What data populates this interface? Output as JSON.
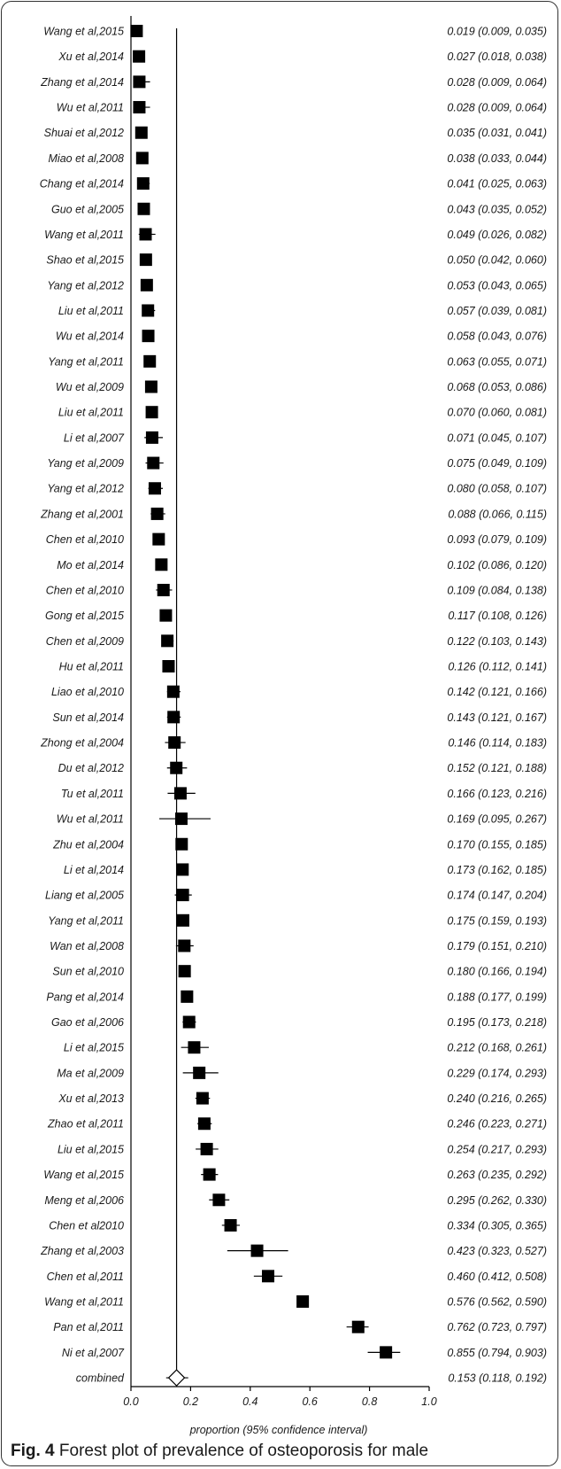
{
  "caption": {
    "label": "Fig. 4",
    "text": "Forest plot of prevalence of osteoporosis for male"
  },
  "colors": {
    "marker": "#000000",
    "line": "#000000",
    "frame": "#333333"
  },
  "chart_data": {
    "type": "forest",
    "xlabel": "proportion (95% confidence interval)",
    "xlim": [
      0.0,
      1.0
    ],
    "xticks": [
      "0.0",
      "0.2",
      "0.4",
      "0.6",
      "0.8",
      "1.0"
    ],
    "reference_line": 0.153,
    "studies": [
      {
        "name": "Wang et al,2015",
        "est": 0.019,
        "lo": 0.009,
        "hi": 0.035,
        "ci_text": "0.019 (0.009, 0.035)"
      },
      {
        "name": "Xu et al,2014",
        "est": 0.027,
        "lo": 0.018,
        "hi": 0.038,
        "ci_text": "0.027 (0.018, 0.038)"
      },
      {
        "name": "Zhang et al,2014",
        "est": 0.028,
        "lo": 0.009,
        "hi": 0.064,
        "ci_text": "0.028 (0.009, 0.064)"
      },
      {
        "name": "Wu et al,2011",
        "est": 0.028,
        "lo": 0.009,
        "hi": 0.064,
        "ci_text": "0.028 (0.009, 0.064)"
      },
      {
        "name": "Shuai et al,2012",
        "est": 0.035,
        "lo": 0.031,
        "hi": 0.041,
        "ci_text": "0.035 (0.031, 0.041)"
      },
      {
        "name": "Miao et al,2008",
        "est": 0.038,
        "lo": 0.033,
        "hi": 0.044,
        "ci_text": "0.038 (0.033, 0.044)"
      },
      {
        "name": "Chang et al,2014",
        "est": 0.041,
        "lo": 0.025,
        "hi": 0.063,
        "ci_text": "0.041 (0.025, 0.063)"
      },
      {
        "name": "Guo et al,2005",
        "est": 0.043,
        "lo": 0.035,
        "hi": 0.052,
        "ci_text": "0.043 (0.035, 0.052)"
      },
      {
        "name": "Wang et al,2011",
        "est": 0.049,
        "lo": 0.026,
        "hi": 0.082,
        "ci_text": "0.049 (0.026, 0.082)"
      },
      {
        "name": "Shao et al,2015",
        "est": 0.05,
        "lo": 0.042,
        "hi": 0.06,
        "ci_text": "0.050 (0.042, 0.060)"
      },
      {
        "name": "Yang et al,2012",
        "est": 0.053,
        "lo": 0.043,
        "hi": 0.065,
        "ci_text": "0.053 (0.043, 0.065)"
      },
      {
        "name": "Liu et al,2011",
        "est": 0.057,
        "lo": 0.039,
        "hi": 0.081,
        "ci_text": "0.057 (0.039, 0.081)"
      },
      {
        "name": "Wu et al,2014",
        "est": 0.058,
        "lo": 0.043,
        "hi": 0.076,
        "ci_text": "0.058 (0.043, 0.076)"
      },
      {
        "name": "Yang et al,2011",
        "est": 0.063,
        "lo": 0.055,
        "hi": 0.071,
        "ci_text": "0.063 (0.055, 0.071)"
      },
      {
        "name": "Wu et al,2009",
        "est": 0.068,
        "lo": 0.053,
        "hi": 0.086,
        "ci_text": "0.068 (0.053, 0.086)"
      },
      {
        "name": "Liu et al,2011",
        "est": 0.07,
        "lo": 0.06,
        "hi": 0.081,
        "ci_text": "0.070 (0.060, 0.081)"
      },
      {
        "name": "Li et al,2007",
        "est": 0.071,
        "lo": 0.045,
        "hi": 0.107,
        "ci_text": "0.071 (0.045, 0.107)"
      },
      {
        "name": "Yang et al,2009",
        "est": 0.075,
        "lo": 0.049,
        "hi": 0.109,
        "ci_text": "0.075 (0.049, 0.109)"
      },
      {
        "name": "Yang et al,2012",
        "est": 0.08,
        "lo": 0.058,
        "hi": 0.107,
        "ci_text": "0.080 (0.058, 0.107)"
      },
      {
        "name": "Zhang et al,2001",
        "est": 0.088,
        "lo": 0.066,
        "hi": 0.115,
        "ci_text": "0.088 (0.066, 0.115)"
      },
      {
        "name": "Chen et al,2010",
        "est": 0.093,
        "lo": 0.079,
        "hi": 0.109,
        "ci_text": "0.093 (0.079, 0.109)"
      },
      {
        "name": "Mo et al,2014",
        "est": 0.102,
        "lo": 0.086,
        "hi": 0.12,
        "ci_text": "0.102 (0.086, 0.120)"
      },
      {
        "name": "Chen et al,2010",
        "est": 0.109,
        "lo": 0.084,
        "hi": 0.138,
        "ci_text": "0.109 (0.084, 0.138)"
      },
      {
        "name": "Gong et al,2015",
        "est": 0.117,
        "lo": 0.108,
        "hi": 0.126,
        "ci_text": "0.117 (0.108, 0.126)"
      },
      {
        "name": "Chen et al,2009",
        "est": 0.122,
        "lo": 0.103,
        "hi": 0.143,
        "ci_text": "0.122 (0.103, 0.143)"
      },
      {
        "name": "Hu et al,2011",
        "est": 0.126,
        "lo": 0.112,
        "hi": 0.141,
        "ci_text": "0.126 (0.112, 0.141)"
      },
      {
        "name": "Liao et al,2010",
        "est": 0.142,
        "lo": 0.121,
        "hi": 0.166,
        "ci_text": "0.142 (0.121, 0.166)"
      },
      {
        "name": "Sun et al,2014",
        "est": 0.143,
        "lo": 0.121,
        "hi": 0.167,
        "ci_text": "0.143 (0.121, 0.167)"
      },
      {
        "name": "Zhong et al,2004",
        "est": 0.146,
        "lo": 0.114,
        "hi": 0.183,
        "ci_text": "0.146 (0.114, 0.183)"
      },
      {
        "name": "Du et al,2012",
        "est": 0.152,
        "lo": 0.121,
        "hi": 0.188,
        "ci_text": "0.152 (0.121, 0.188)"
      },
      {
        "name": "Tu et al,2011",
        "est": 0.166,
        "lo": 0.123,
        "hi": 0.216,
        "ci_text": "0.166 (0.123, 0.216)"
      },
      {
        "name": "Wu et al,2011",
        "est": 0.169,
        "lo": 0.095,
        "hi": 0.267,
        "ci_text": "0.169 (0.095, 0.267)"
      },
      {
        "name": "Zhu et al,2004",
        "est": 0.17,
        "lo": 0.155,
        "hi": 0.185,
        "ci_text": "0.170 (0.155, 0.185)"
      },
      {
        "name": "Li et al,2014",
        "est": 0.173,
        "lo": 0.162,
        "hi": 0.185,
        "ci_text": "0.173 (0.162, 0.185)"
      },
      {
        "name": "Liang et al,2005",
        "est": 0.174,
        "lo": 0.147,
        "hi": 0.204,
        "ci_text": "0.174 (0.147, 0.204)"
      },
      {
        "name": "Yang et al,2011",
        "est": 0.175,
        "lo": 0.159,
        "hi": 0.193,
        "ci_text": "0.175 (0.159, 0.193)"
      },
      {
        "name": "Wan et al,2008",
        "est": 0.179,
        "lo": 0.151,
        "hi": 0.21,
        "ci_text": "0.179 (0.151, 0.210)"
      },
      {
        "name": "Sun et al,2010",
        "est": 0.18,
        "lo": 0.166,
        "hi": 0.194,
        "ci_text": "0.180 (0.166, 0.194)"
      },
      {
        "name": "Pang et al,2014",
        "est": 0.188,
        "lo": 0.177,
        "hi": 0.199,
        "ci_text": "0.188 (0.177, 0.199)"
      },
      {
        "name": "Gao et al,2006",
        "est": 0.195,
        "lo": 0.173,
        "hi": 0.218,
        "ci_text": "0.195 (0.173, 0.218)"
      },
      {
        "name": "Li et al,2015",
        "est": 0.212,
        "lo": 0.168,
        "hi": 0.261,
        "ci_text": "0.212 (0.168, 0.261)"
      },
      {
        "name": "Ma et al,2009",
        "est": 0.229,
        "lo": 0.174,
        "hi": 0.293,
        "ci_text": "0.229 (0.174, 0.293)"
      },
      {
        "name": "Xu et al,2013",
        "est": 0.24,
        "lo": 0.216,
        "hi": 0.265,
        "ci_text": "0.240 (0.216, 0.265)"
      },
      {
        "name": "Zhao et al,2011",
        "est": 0.246,
        "lo": 0.223,
        "hi": 0.271,
        "ci_text": "0.246 (0.223, 0.271)"
      },
      {
        "name": "Liu et al,2015",
        "est": 0.254,
        "lo": 0.217,
        "hi": 0.293,
        "ci_text": "0.254 (0.217, 0.293)"
      },
      {
        "name": "Wang et al,2015",
        "est": 0.263,
        "lo": 0.235,
        "hi": 0.292,
        "ci_text": "0.263 (0.235, 0.292)"
      },
      {
        "name": "Meng et al,2006",
        "est": 0.295,
        "lo": 0.262,
        "hi": 0.33,
        "ci_text": "0.295 (0.262, 0.330)"
      },
      {
        "name": "Chen et al2010",
        "est": 0.334,
        "lo": 0.305,
        "hi": 0.365,
        "ci_text": "0.334 (0.305, 0.365)"
      },
      {
        "name": "Zhang et al,2003",
        "est": 0.423,
        "lo": 0.323,
        "hi": 0.527,
        "ci_text": "0.423 (0.323, 0.527)"
      },
      {
        "name": "Chen et al,2011",
        "est": 0.46,
        "lo": 0.412,
        "hi": 0.508,
        "ci_text": "0.460 (0.412, 0.508)"
      },
      {
        "name": "Wang et al,2011",
        "est": 0.576,
        "lo": 0.562,
        "hi": 0.59,
        "ci_text": "0.576 (0.562, 0.590)"
      },
      {
        "name": "Pan et al,2011",
        "est": 0.762,
        "lo": 0.723,
        "hi": 0.797,
        "ci_text": "0.762 (0.723, 0.797)"
      },
      {
        "name": "Ni et al,2007",
        "est": 0.855,
        "lo": 0.794,
        "hi": 0.903,
        "ci_text": "0.855 (0.794, 0.903)"
      }
    ],
    "combined": {
      "name": "combined",
      "est": 0.153,
      "lo": 0.118,
      "hi": 0.192,
      "ci_text": "0.153 (0.118, 0.192)"
    }
  }
}
